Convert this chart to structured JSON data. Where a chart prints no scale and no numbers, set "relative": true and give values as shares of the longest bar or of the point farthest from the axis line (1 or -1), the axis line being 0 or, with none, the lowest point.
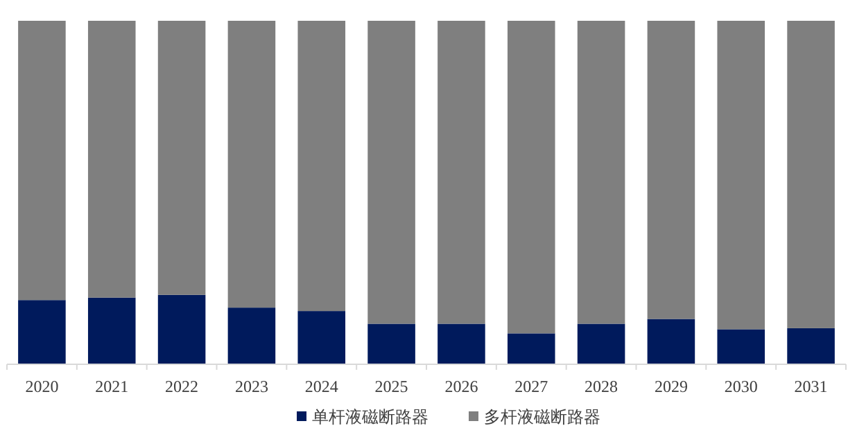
{
  "chart_data": {
    "type": "bar",
    "stacked": true,
    "relative": true,
    "legend": "bottom",
    "categories": [
      "2020",
      "2021",
      "2022",
      "2023",
      "2024",
      "2025",
      "2026",
      "2027",
      "2028",
      "2029",
      "2030",
      "2031"
    ],
    "series": [
      {
        "name": "单杆液磁断路器",
        "color": "#001a5c",
        "values": [
          0.187,
          0.194,
          0.202,
          0.165,
          0.155,
          0.118,
          0.118,
          0.09,
          0.118,
          0.132,
          0.102,
          0.105
        ]
      },
      {
        "name": "多杆液磁断路器",
        "color": "#7f7f7f",
        "values": [
          0.813,
          0.806,
          0.798,
          0.835,
          0.845,
          0.882,
          0.882,
          0.91,
          0.882,
          0.868,
          0.898,
          0.895
        ]
      }
    ]
  }
}
